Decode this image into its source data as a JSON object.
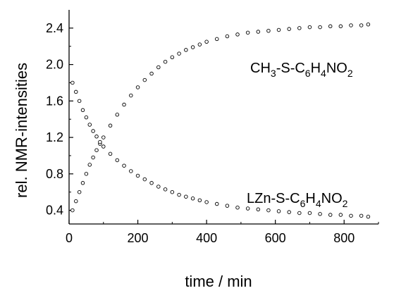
{
  "chart_data": {
    "type": "scatter",
    "xlabel": "time / min",
    "ylabel": "rel. NMR-intensities",
    "xlim": [
      0,
      900
    ],
    "ylim": [
      0.25,
      2.6
    ],
    "x_ticks": [
      0,
      200,
      400,
      600,
      800
    ],
    "y_ticks": [
      0.4,
      0.8,
      1.2,
      1.6,
      2.0,
      2.4
    ],
    "x_tick_labels": [
      "0",
      "200",
      "400",
      "600",
      "800"
    ],
    "y_tick_labels": [
      "0.4",
      "0.8",
      "1.2",
      "1.6",
      "2.0",
      "2.4"
    ],
    "grid": false,
    "marker": "open-circle",
    "series": [
      {
        "name": "CH3-S-C6H4NO2",
        "label_parts": [
          {
            "text": "CH",
            "sub": false
          },
          {
            "text": "3",
            "sub": true
          },
          {
            "text": "-S-C",
            "sub": false
          },
          {
            "text": "6",
            "sub": true
          },
          {
            "text": "H",
            "sub": false
          },
          {
            "text": "4",
            "sub": true
          },
          {
            "text": "NO",
            "sub": false
          },
          {
            "text": "2",
            "sub": true
          }
        ],
        "x": [
          10,
          20,
          30,
          40,
          50,
          60,
          70,
          80,
          90,
          100,
          120,
          140,
          160,
          180,
          200,
          220,
          240,
          260,
          280,
          300,
          320,
          340,
          360,
          380,
          400,
          430,
          460,
          490,
          520,
          550,
          580,
          610,
          640,
          670,
          700,
          730,
          760,
          790,
          820,
          850,
          870
        ],
        "y": [
          0.4,
          0.5,
          0.6,
          0.7,
          0.8,
          0.9,
          0.98,
          1.06,
          1.13,
          1.2,
          1.33,
          1.45,
          1.56,
          1.66,
          1.75,
          1.83,
          1.9,
          1.97,
          2.03,
          2.08,
          2.12,
          2.16,
          2.19,
          2.22,
          2.25,
          2.28,
          2.31,
          2.33,
          2.35,
          2.36,
          2.37,
          2.38,
          2.39,
          2.4,
          2.41,
          2.41,
          2.42,
          2.42,
          2.43,
          2.43,
          2.44
        ]
      },
      {
        "name": "LZn-S-C6H4NO2",
        "label_parts": [
          {
            "text": "LZn-S-C",
            "sub": false
          },
          {
            "text": "6",
            "sub": true
          },
          {
            "text": "H",
            "sub": false
          },
          {
            "text": "4",
            "sub": true
          },
          {
            "text": "NO",
            "sub": false
          },
          {
            "text": "2",
            "sub": true
          }
        ],
        "x": [
          10,
          20,
          30,
          40,
          50,
          60,
          70,
          80,
          90,
          100,
          120,
          140,
          160,
          180,
          200,
          220,
          240,
          260,
          280,
          300,
          320,
          340,
          360,
          380,
          400,
          430,
          460,
          490,
          520,
          550,
          580,
          610,
          640,
          670,
          700,
          730,
          760,
          790,
          820,
          850,
          870
        ],
        "y": [
          1.8,
          1.7,
          1.6,
          1.5,
          1.42,
          1.34,
          1.27,
          1.21,
          1.15,
          1.1,
          1.02,
          0.95,
          0.89,
          0.83,
          0.78,
          0.74,
          0.7,
          0.66,
          0.63,
          0.6,
          0.57,
          0.55,
          0.53,
          0.51,
          0.49,
          0.47,
          0.45,
          0.43,
          0.42,
          0.41,
          0.4,
          0.39,
          0.38,
          0.37,
          0.37,
          0.36,
          0.35,
          0.35,
          0.34,
          0.34,
          0.33
        ]
      }
    ]
  }
}
